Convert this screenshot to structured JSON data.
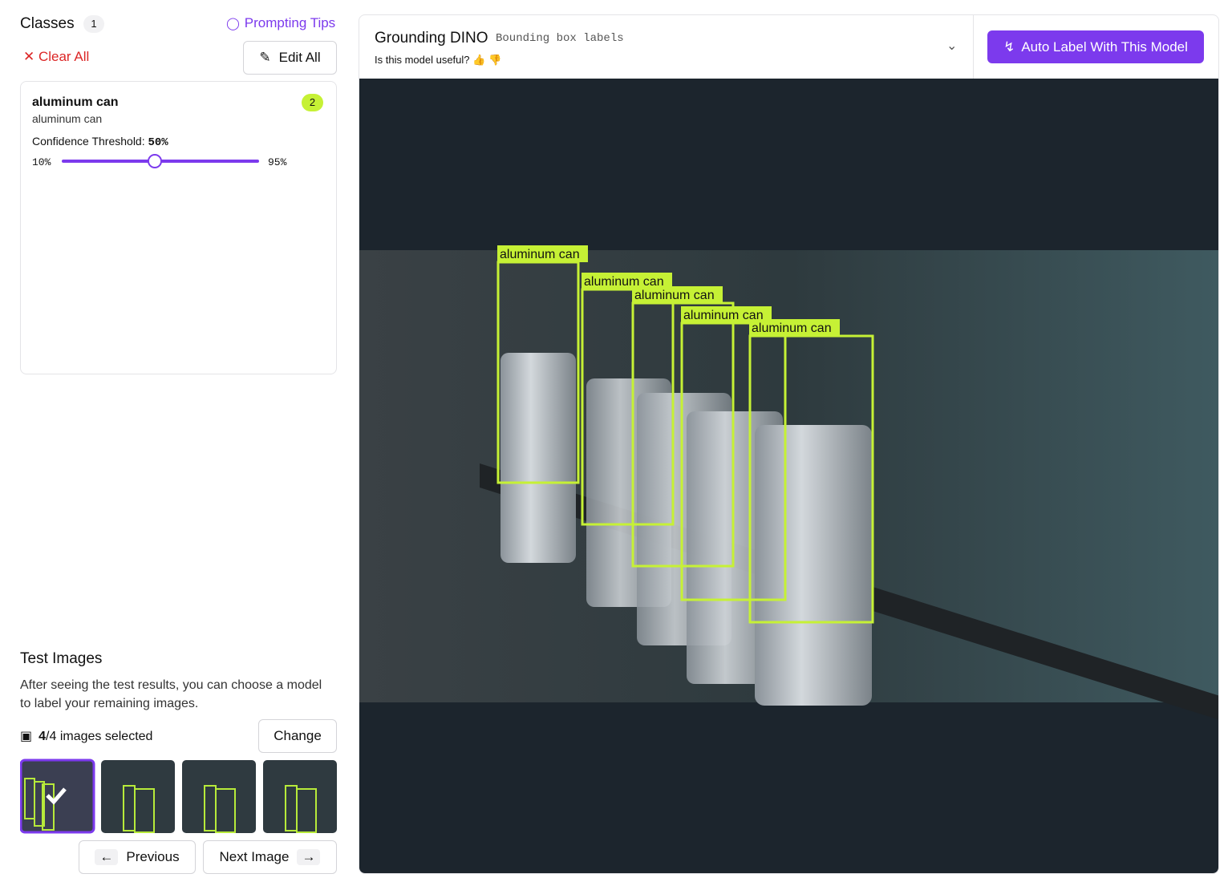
{
  "sidebar": {
    "classes_title": "Classes",
    "classes_count": "1",
    "prompting_tips": "Prompting Tips",
    "clear_all": "Clear All",
    "edit_all": "Edit All",
    "classes": [
      {
        "name": "aluminum can",
        "prompt": "aluminum can",
        "count": "2",
        "threshold_label": "Confidence Threshold:",
        "threshold": {
          "value": 50,
          "label": "50%"
        },
        "min": {
          "value": 10,
          "label": "10%"
        },
        "max": {
          "value": 95,
          "label": "95%"
        }
      }
    ]
  },
  "test_images": {
    "title": "Test Images",
    "description": "After seeing the test results, you can choose a model to label your remaining images.",
    "selected_count": "4",
    "selected_suffix": "/4 images selected",
    "change": "Change",
    "previous": "Previous",
    "next": "Next Image"
  },
  "model": {
    "name": "Grounding DINO",
    "output": "Bounding box labels",
    "feedback_question": "Is this model useful?",
    "auto_label": "Auto Label With This Model"
  },
  "detections": [
    "aluminum can",
    "aluminum can",
    "aluminum can",
    "aluminum can",
    "aluminum can"
  ]
}
